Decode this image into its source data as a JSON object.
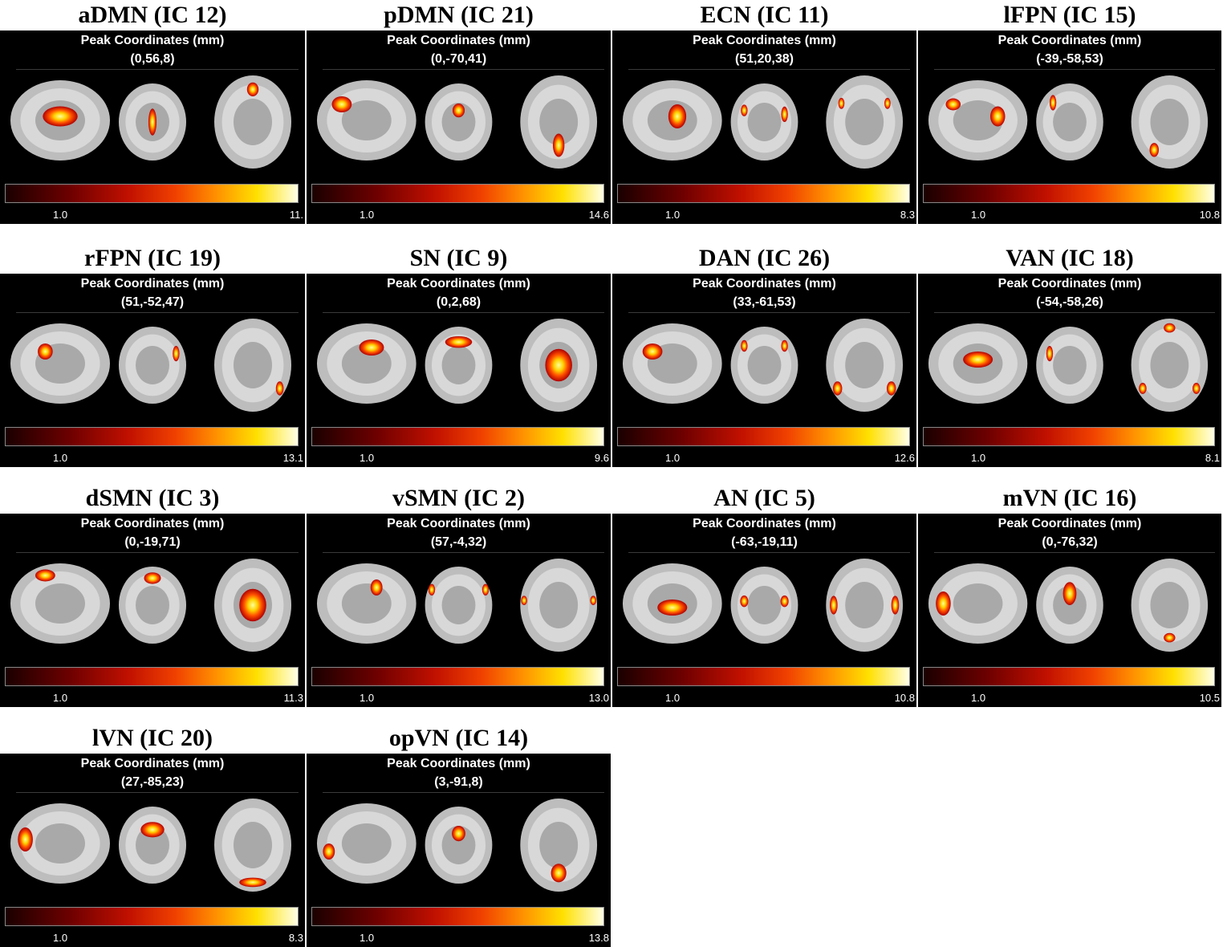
{
  "figure": {
    "peak_label": "Peak Coordinates (mm)",
    "colorbar_min": "1.0",
    "colormap": [
      "#1a0000",
      "#6d0000",
      "#c01000",
      "#f04000",
      "#ff9000",
      "#ffe000",
      "#ffffe6"
    ],
    "networks": [
      {
        "title": "aDMN (IC 12)",
        "peak": "(0,56,8)",
        "max": "11."
      },
      {
        "title": "pDMN (IC 21)",
        "peak": "(0,-70,41)",
        "max": "14.6"
      },
      {
        "title": "ECN (IC 11)",
        "peak": "(51,20,38)",
        "max": "8.3"
      },
      {
        "title": "lFPN (IC 15)",
        "peak": "(-39,-58,53)",
        "max": "10.8"
      },
      {
        "title": "rFPN (IC 19)",
        "peak": "(51,-52,47)",
        "max": "13.1"
      },
      {
        "title": "SN (IC 9)",
        "peak": "(0,2,68)",
        "max": "9.6"
      },
      {
        "title": "DAN (IC 26)",
        "peak": "(33,-61,53)",
        "max": "12.6"
      },
      {
        "title": "VAN (IC 18)",
        "peak": "(-54,-58,26)",
        "max": "8.1"
      },
      {
        "title": "dSMN (IC 3)",
        "peak": "(0,-19,71)",
        "max": "11.3"
      },
      {
        "title": "vSMN (IC 2)",
        "peak": "(57,-4,32)",
        "max": "13.0"
      },
      {
        "title": "AN (IC 5)",
        "peak": "(-63,-19,11)",
        "max": "10.8"
      },
      {
        "title": "mVN (IC 16)",
        "peak": "(0,-76,32)",
        "max": "10.5"
      },
      {
        "title": "lVN (IC 20)",
        "peak": "(27,-85,23)",
        "max": "8.3"
      },
      {
        "title": "opVN (IC 14)",
        "peak": "(3,-91,8)",
        "max": "13.8"
      }
    ]
  }
}
